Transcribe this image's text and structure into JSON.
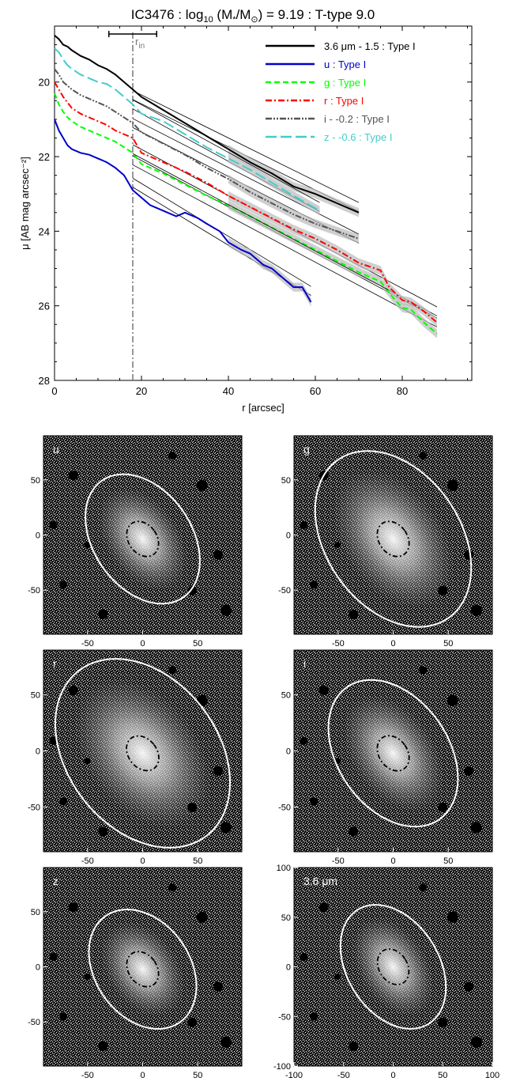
{
  "chart_data": [
    {
      "type": "line",
      "title": "IC3476 : log",
      "title_sub": "10",
      "title_mid": " (M",
      "title_star_sub": "*",
      "title_mid2": "/M",
      "title_sun_sub": "⊙",
      "title_rest": ") = 9.19 : T-type 9.0",
      "xlabel": "r [arcsec]",
      "ylabel": "μ [AB mag arcsec⁻²]",
      "xlim": [
        0,
        96
      ],
      "ylim": [
        28,
        18.5
      ],
      "y_inverted": true,
      "x_ticks": [
        0,
        20,
        40,
        60,
        80
      ],
      "y_ticks": [
        20,
        22,
        24,
        26,
        28
      ],
      "r_in": 18,
      "r_in_label": "r",
      "r_in_sub": "in",
      "r_in_range": [
        12.5,
        23.5
      ],
      "legend_position": "top-right",
      "series": [
        {
          "name": "3.6 μm - 1.5 : Type I",
          "color": "#000000",
          "dash": "solid",
          "x": [
            0,
            1,
            2,
            3,
            4,
            6,
            8,
            10,
            12,
            14,
            16,
            18,
            20,
            25,
            30,
            35,
            40,
            45,
            50,
            55,
            60,
            65,
            70
          ],
          "y": [
            18.75,
            18.85,
            19.0,
            19.05,
            19.15,
            19.3,
            19.4,
            19.55,
            19.65,
            19.8,
            20.0,
            20.2,
            20.4,
            20.75,
            21.1,
            21.45,
            21.8,
            22.15,
            22.45,
            22.8,
            23.0,
            23.25,
            23.5
          ],
          "fit": {
            "x": [
              18,
              70
            ],
            "y": [
              20.35,
              23.35
            ]
          }
        },
        {
          "name": "u : Type I",
          "color": "#0000cc",
          "dash": "solid",
          "x": [
            0,
            1,
            2,
            3,
            4,
            6,
            8,
            10,
            12,
            14,
            16,
            18,
            20,
            22,
            25,
            28,
            30,
            33,
            35,
            38,
            40,
            43,
            45,
            48,
            50,
            53,
            55,
            57,
            59
          ],
          "y": [
            21.0,
            21.3,
            21.5,
            21.7,
            21.8,
            21.9,
            21.95,
            22.05,
            22.15,
            22.3,
            22.5,
            22.9,
            23.1,
            23.3,
            23.45,
            23.6,
            23.5,
            23.65,
            23.8,
            24.0,
            24.3,
            24.5,
            24.6,
            24.9,
            25.0,
            25.3,
            25.5,
            25.5,
            25.9
          ],
          "fit": {
            "x": [
              18,
              59
            ],
            "y": [
              22.7,
              25.6
            ]
          }
        },
        {
          "name": "g : Type I",
          "color": "#00ff00",
          "dash": "dash",
          "x": [
            0,
            1,
            2,
            3,
            4,
            6,
            8,
            10,
            12,
            14,
            16,
            18,
            20,
            25,
            30,
            35,
            40,
            45,
            50,
            55,
            60,
            65,
            70,
            75,
            78,
            80,
            82,
            85,
            88
          ],
          "y": [
            20.3,
            20.6,
            20.8,
            20.95,
            21.05,
            21.2,
            21.3,
            21.4,
            21.5,
            21.6,
            21.75,
            21.9,
            22.2,
            22.45,
            22.75,
            23.05,
            23.3,
            23.6,
            23.9,
            24.2,
            24.5,
            24.8,
            25.1,
            25.35,
            25.8,
            26.05,
            26.1,
            26.45,
            26.75
          ],
          "fit": {
            "x": [
              18,
              88
            ],
            "y": [
              22.1,
              26.45
            ]
          }
        },
        {
          "name": "r : Type I",
          "color": "#ff0000",
          "dash": "dashdot",
          "x": [
            0,
            1,
            2,
            3,
            4,
            6,
            8,
            10,
            12,
            14,
            16,
            18,
            20,
            25,
            30,
            35,
            40,
            45,
            50,
            55,
            60,
            65,
            70,
            75,
            77,
            80,
            82,
            85,
            88
          ],
          "y": [
            20.0,
            20.2,
            20.4,
            20.55,
            20.7,
            20.85,
            20.95,
            21.05,
            21.15,
            21.3,
            21.4,
            21.5,
            21.9,
            22.15,
            22.4,
            22.7,
            23.05,
            23.35,
            23.65,
            23.95,
            24.2,
            24.5,
            24.85,
            25.05,
            25.5,
            25.85,
            25.9,
            26.15,
            26.45
          ],
          "fit": {
            "x": [
              18,
              88
            ],
            "y": [
              21.8,
              26.15
            ]
          }
        },
        {
          "name": "i - -0.2 : Type I",
          "color": "#555555",
          "dash": "dashdotdot",
          "x": [
            0,
            1,
            2,
            3,
            4,
            6,
            8,
            10,
            12,
            14,
            16,
            18,
            20,
            25,
            30,
            35,
            40,
            45,
            50,
            55,
            60,
            65,
            70
          ],
          "y": [
            19.65,
            19.8,
            20.0,
            20.1,
            20.2,
            20.35,
            20.45,
            20.55,
            20.65,
            20.8,
            20.95,
            21.1,
            21.35,
            21.65,
            21.95,
            22.3,
            22.6,
            22.95,
            23.25,
            23.55,
            23.8,
            24.0,
            24.2
          ],
          "fit": {
            "x": [
              18,
              70
            ],
            "y": [
              21.1,
              24.2
            ]
          }
        },
        {
          "name": "z - -0.6 : Type I",
          "color": "#44cccc",
          "dash": "longdash",
          "x": [
            0,
            1,
            2,
            3,
            4,
            6,
            8,
            10,
            12,
            14,
            16,
            18,
            20,
            25,
            30,
            35,
            40,
            45,
            50,
            55,
            58,
            61
          ],
          "y": [
            19.1,
            19.2,
            19.4,
            19.55,
            19.65,
            19.8,
            19.9,
            20.0,
            20.05,
            20.2,
            20.4,
            20.6,
            20.85,
            21.05,
            21.4,
            21.75,
            22.05,
            22.35,
            22.7,
            23.05,
            23.25,
            23.45
          ],
          "fit": {
            "x": [
              18,
              61
            ],
            "y": [
              20.6,
              23.35
            ]
          }
        }
      ]
    },
    {
      "type": "heatmap",
      "panels": [
        {
          "label": "u",
          "x_ticks": [
            -50,
            0,
            50
          ],
          "y_ticks": [
            50,
            0,
            -50
          ],
          "has_x_labels": true
        },
        {
          "label": "g",
          "x_ticks": [
            -50,
            0,
            50
          ],
          "y_ticks": [
            50,
            0,
            -50
          ],
          "has_x_labels": true
        },
        {
          "label": "r",
          "x_ticks": [
            -50,
            0,
            50
          ],
          "y_ticks": [
            50,
            0,
            -50
          ],
          "has_x_labels": true
        },
        {
          "label": "i",
          "x_ticks": [
            -50,
            0,
            50
          ],
          "y_ticks": [
            50,
            0,
            -50
          ],
          "has_x_labels": true
        },
        {
          "label": "z",
          "x_ticks": [
            -50,
            0,
            50
          ],
          "y_ticks": [
            50,
            0,
            -50
          ],
          "has_x_labels": true
        },
        {
          "label": "3.6 μm",
          "x_ticks": [
            -100,
            -50,
            0,
            50,
            100
          ],
          "y_ticks": [
            100,
            50,
            0,
            -50,
            -100
          ],
          "has_x_labels": true
        }
      ]
    }
  ]
}
